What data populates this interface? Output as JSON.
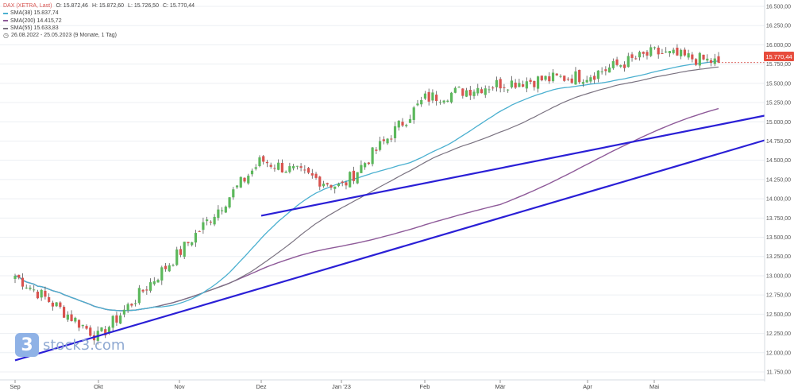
{
  "legend": {
    "instrument": "DAX (XETRA, Last)",
    "open": "O: 15.872,46",
    "high": "H: 15.872,60",
    "low": "L: 15.726,50",
    "close": "C: 15.770,44",
    "sma38": "SMA(38)  15.837,74",
    "sma200": "SMA(200)  14.415,72",
    "sma55": "SMA(55)  15.633,83",
    "range": "26.08.2022 - 25.05.2023   (9 Monate, 1 Tag)"
  },
  "logo": {
    "text": "stock3.com",
    "badge": "3"
  },
  "price_tag": "15.770,44",
  "colors": {
    "up": "#5cb85c",
    "down": "#d9534f",
    "sma38": "#4bb0d0",
    "sma55": "#7a7280",
    "sma200": "#8e5a99",
    "trendline": "#2a1fd6"
  },
  "chart_data": {
    "type": "candlestick",
    "y_axis_range": [
      11750,
      16500
    ],
    "y_ticks": [
      "16.500,00",
      "16.250,00",
      "16.000,00",
      "15.750,00",
      "15.500,00",
      "15.250,00",
      "15.000,00",
      "14.750,00",
      "14.500,00",
      "14.250,00",
      "14.000,00",
      "13.750,00",
      "13.500,00",
      "13.250,00",
      "13.000,00",
      "12.750,00",
      "12.500,00",
      "12.250,00",
      "12.000,00",
      "11.750,00"
    ],
    "x_ticks": [
      "Sep",
      "Okt",
      "Nov",
      "Dez",
      "Jan '23",
      "Feb",
      "Mär",
      "Apr",
      "Mai"
    ],
    "close_path": [
      {
        "x": "Sep",
        "y": 13000
      },
      {
        "x": "Okt",
        "y": 12200
      },
      {
        "x": "Nov",
        "y": 13300
      },
      {
        "x": "Dez",
        "y": 14500
      },
      {
        "x": "Jan '23",
        "y": 14150
      },
      {
        "x": "Feb",
        "y": 15300
      },
      {
        "x": "Mär",
        "y": 15500
      },
      {
        "x": "Apr",
        "y": 15600
      },
      {
        "x": "Mai",
        "y": 15900
      },
      {
        "x": "25.05.2023",
        "y": 15770
      }
    ],
    "trendlines": [
      {
        "from": {
          "x": "Sep",
          "y": 11900
        },
        "to": {
          "x": "25.05.2023",
          "y": 14760
        }
      },
      {
        "from": {
          "x": "Dez",
          "y": 13780
        },
        "to": {
          "x": "25.05.2023",
          "y": 15080
        }
      }
    ]
  }
}
